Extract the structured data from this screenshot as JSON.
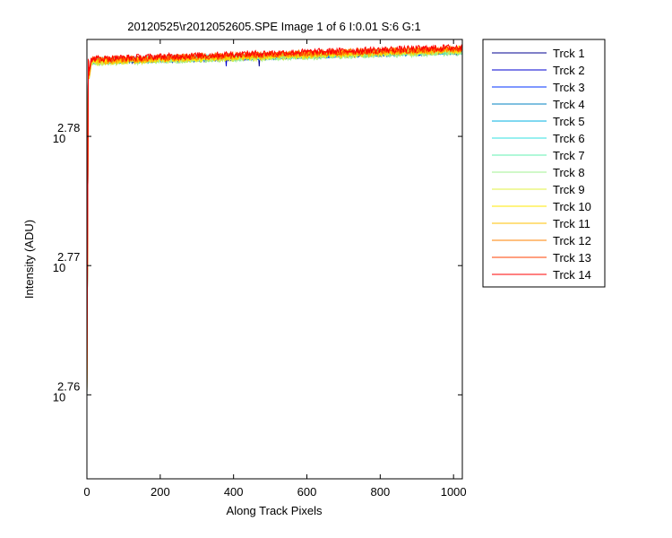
{
  "chart_data": {
    "type": "line",
    "title": "20120525\\r2012052605.SPE  Image 1 of 6  I:0.01  S:6  G:1",
    "xlabel": "Along Track Pixels",
    "ylabel": "Intensity (ADU)",
    "xlim": [
      0,
      1024
    ],
    "ylim_log10": [
      2.7535,
      2.7875
    ],
    "yscale": "log",
    "x_ticks": [
      0,
      200,
      400,
      600,
      800,
      1000
    ],
    "x_tick_labels": [
      "0",
      "200",
      "400",
      "600",
      "800",
      "1000"
    ],
    "y_ticks": [
      {
        "exp": 2.76,
        "base": "10",
        "exponent": "2.76"
      },
      {
        "exp": 2.77,
        "base": "10",
        "exponent": "2.77"
      },
      {
        "exp": 2.78,
        "base": "10",
        "exponent": "2.78"
      }
    ],
    "grid": false,
    "legend_position": "outside-right",
    "series": [
      {
        "name": "Trck 1",
        "color": "#000090",
        "plateau_start": 2.7858,
        "plateau_end": 2.7866,
        "noise": 0.00025,
        "min": 2.76,
        "dip_x": 470
      },
      {
        "name": "Trck 2",
        "color": "#0000d0",
        "plateau_start": 2.7858,
        "plateau_end": 2.7866,
        "noise": 0.00025,
        "min": 2.76,
        "dip_x": 380
      },
      {
        "name": "Trck 3",
        "color": "#0030ff",
        "plateau_start": 2.7858,
        "plateau_end": 2.7866,
        "noise": 0.00025,
        "min": 2.76
      },
      {
        "name": "Trck 4",
        "color": "#0080c0",
        "plateau_start": 2.7858,
        "plateau_end": 2.7866,
        "noise": 0.00025,
        "min": 2.76
      },
      {
        "name": "Trck 5",
        "color": "#00b0e0",
        "plateau_start": 2.7858,
        "plateau_end": 2.7866,
        "noise": 0.00025,
        "min": 2.76
      },
      {
        "name": "Trck 6",
        "color": "#30e0e0",
        "plateau_start": 2.7858,
        "plateau_end": 2.7866,
        "noise": 0.00025,
        "min": 2.76
      },
      {
        "name": "Trck 7",
        "color": "#60f0b0",
        "plateau_start": 2.7858,
        "plateau_end": 2.7866,
        "noise": 0.00025,
        "min": 2.76
      },
      {
        "name": "Trck 8",
        "color": "#a0f090",
        "plateau_start": 2.7857,
        "plateau_end": 2.7865,
        "noise": 0.00025,
        "min": 2.76
      },
      {
        "name": "Trck 9",
        "color": "#e0f040",
        "plateau_start": 2.7857,
        "plateau_end": 2.7866,
        "noise": 0.00025,
        "min": 2.76
      },
      {
        "name": "Trck 10",
        "color": "#ffe800",
        "plateau_start": 2.7858,
        "plateau_end": 2.7867,
        "noise": 0.00025,
        "min": 2.76
      },
      {
        "name": "Trck 11",
        "color": "#ffc000",
        "plateau_start": 2.7858,
        "plateau_end": 2.7867,
        "noise": 0.00025,
        "min": 2.76
      },
      {
        "name": "Trck 12",
        "color": "#ff8000",
        "plateau_start": 2.7859,
        "plateau_end": 2.7868,
        "noise": 0.00025,
        "min": 2.76
      },
      {
        "name": "Trck 13",
        "color": "#ff4000",
        "plateau_start": 2.7859,
        "plateau_end": 2.7868,
        "noise": 0.00025,
        "min": 2.76
      },
      {
        "name": "Trck 14",
        "color": "#ff0000",
        "plateau_start": 2.786,
        "plateau_end": 2.7869,
        "noise": 0.00025,
        "min": 2.76
      }
    ]
  }
}
